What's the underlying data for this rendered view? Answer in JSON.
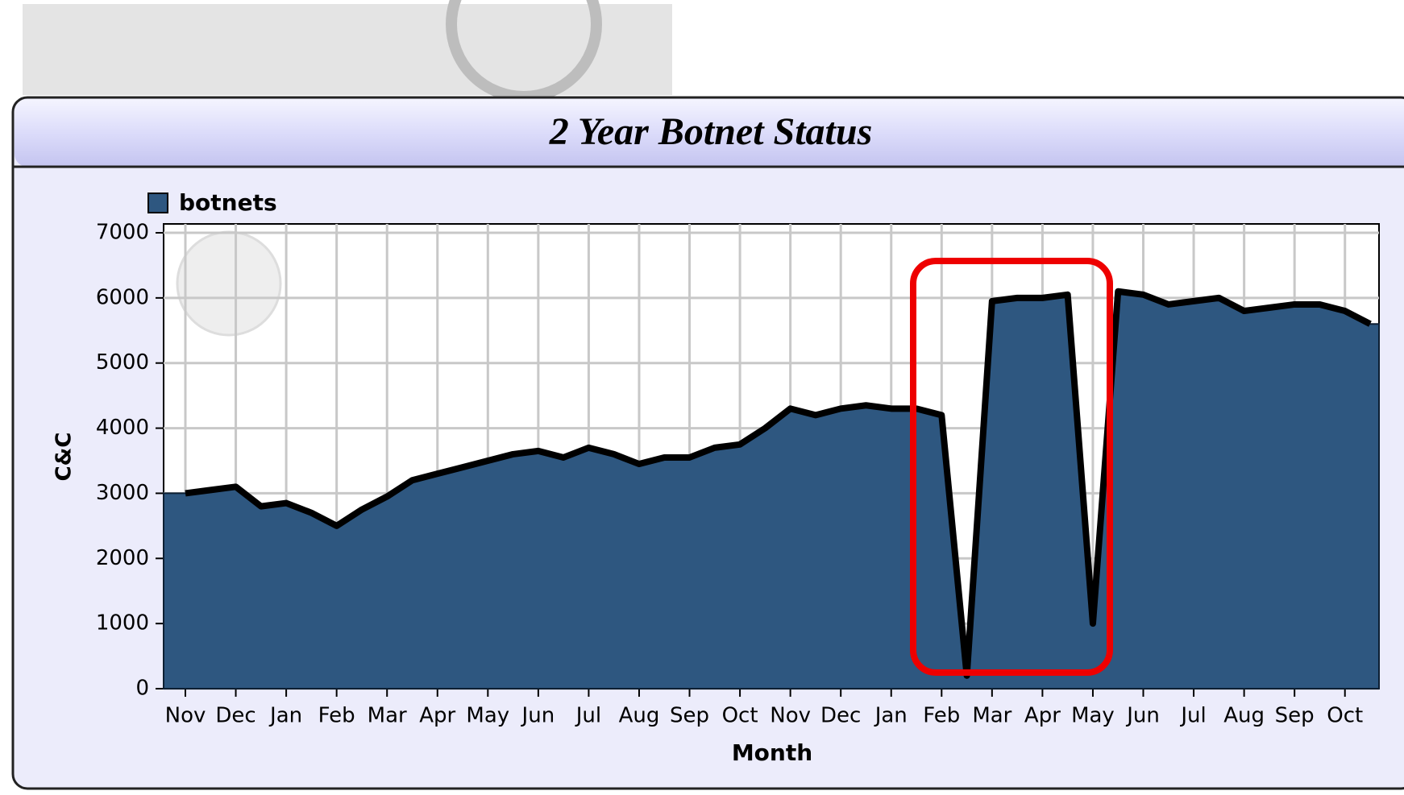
{
  "chart_data": {
    "type": "area",
    "title": "2 Year Botnet Status",
    "x_label": "Month",
    "y_label": "C&C",
    "categories": [
      "Nov",
      null,
      "Dec",
      null,
      "Jan",
      null,
      "Feb",
      null,
      "Mar",
      null,
      "Apr",
      null,
      "May",
      null,
      "Jun",
      null,
      "Jul",
      null,
      "Aug",
      null,
      "Sep",
      null,
      "Oct",
      null,
      "Nov",
      null,
      "Dec",
      null,
      "Jan",
      null,
      "Feb",
      null,
      "Mar",
      null,
      "Apr",
      null,
      "May",
      null,
      "Jun",
      null,
      "Jul",
      null,
      "Aug",
      null,
      "Sep",
      null,
      "Oct",
      null
    ],
    "series": [
      {
        "name": "botnets",
        "color": "#2e5780",
        "values": [
          3000,
          3050,
          3100,
          2800,
          2850,
          2700,
          2500,
          2750,
          2950,
          3200,
          3300,
          3400,
          3500,
          3600,
          3650,
          3550,
          3700,
          3600,
          3450,
          3550,
          3550,
          3700,
          3750,
          4000,
          4300,
          4200,
          4300,
          4350,
          4300,
          4300,
          4200,
          200,
          5950,
          6000,
          6000,
          6050,
          1000,
          6100,
          6050,
          5900,
          5950,
          6000,
          5800,
          5850,
          5900,
          5900,
          5800,
          5600
        ]
      }
    ],
    "ylim": [
      0,
      7000
    ],
    "yticks": [
      0,
      1000,
      2000,
      3000,
      4000,
      5000,
      6000,
      7000
    ],
    "grid": true,
    "legend": "top-left"
  }
}
